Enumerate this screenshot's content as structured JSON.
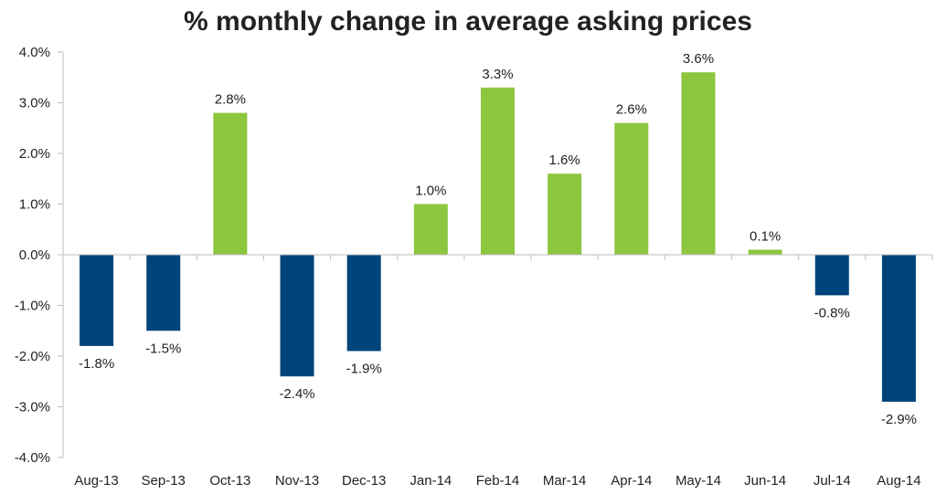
{
  "chart_data": {
    "type": "bar",
    "title": "% monthly change in average asking prices",
    "xlabel": "",
    "ylabel": "",
    "ylim": [
      -4.0,
      4.0
    ],
    "ytick_step": 1.0,
    "ytick_labels": [
      "4.0%",
      "3.0%",
      "2.0%",
      "1.0%",
      "0.0%",
      "-1.0%",
      "-2.0%",
      "-3.0%",
      "-4.0%"
    ],
    "grid": false,
    "legend": "none",
    "categories": [
      "Aug-13",
      "Sep-13",
      "Oct-13",
      "Nov-13",
      "Dec-13",
      "Jan-14",
      "Feb-14",
      "Mar-14",
      "Apr-14",
      "May-14",
      "Jun-14",
      "Jul-14",
      "Aug-14"
    ],
    "values": [
      -1.8,
      -1.5,
      2.8,
      -2.4,
      -1.9,
      1.0,
      3.3,
      1.6,
      2.6,
      3.6,
      0.1,
      -0.8,
      -2.9
    ],
    "data_labels": [
      "-1.8%",
      "-1.5%",
      "2.8%",
      "-2.4%",
      "-1.9%",
      "1.0%",
      "3.3%",
      "1.6%",
      "2.6%",
      "3.6%",
      "0.1%",
      "-0.8%",
      "-2.9%"
    ],
    "colors": {
      "positive": "#8dc63f",
      "negative": "#00447c",
      "axis": "#bfbfbf"
    }
  }
}
